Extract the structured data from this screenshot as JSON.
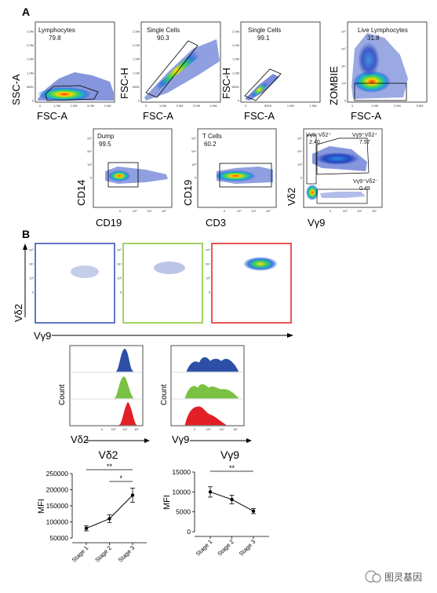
{
  "panels": {
    "a": "A",
    "b": "B"
  },
  "scatter_row1": [
    {
      "x_label": "FSC-A",
      "y_label": "SSC-A",
      "gate_label": "Lymphocytes",
      "gate_value": "79.8",
      "y_ticks": [
        "2.5M",
        "2.0M",
        "1.5M",
        "1.0M",
        "500K",
        "0"
      ],
      "x_ticks": [
        "0",
        "1.0M",
        "2.0M",
        "3.0M",
        "4.0M"
      ]
    },
    {
      "x_label": "FSC-A",
      "y_label": "FSC-H",
      "gate_label": "Single Cells",
      "gate_value": "90.3",
      "y_ticks": [
        "2.5M",
        "2.0M",
        "1.5M",
        "1.0M",
        "500K",
        "0"
      ],
      "x_ticks": [
        "0",
        "1.0M",
        "2.0M",
        "3.0M",
        "4.0M"
      ]
    },
    {
      "x_label": "FSC-A",
      "y_label": "FSC-H",
      "gate_label": "Single Cells",
      "gate_value": "99.1",
      "y_ticks": [
        "2.5M",
        "2.0M",
        "1.5M",
        "1.0M",
        "500K",
        "0"
      ],
      "x_ticks": [
        "0",
        "500K",
        "1.0M",
        "1.5M"
      ]
    },
    {
      "x_label": "FSC-A",
      "y_label": "ZOMBIE",
      "gate_label": "Live Lymphocytes",
      "gate_value": "31.8",
      "y_ticks": [
        "10⁶",
        "10⁵",
        "10⁴",
        "10³",
        "0"
      ],
      "x_ticks": [
        "0",
        "1.0M",
        "2.0M",
        "3.0M"
      ]
    }
  ],
  "scatter_row2": [
    {
      "x_label": "CD19",
      "y_label": "CD14",
      "gate_label": "Dump",
      "gate_value": "99.5",
      "y_ticks": [
        "10⁵",
        "10⁴",
        "10³",
        "0"
      ],
      "x_ticks": [
        "0",
        "10³",
        "10⁴",
        "10⁵"
      ]
    },
    {
      "x_label": "CD3",
      "y_label": "CD19",
      "gate_label": "T Cells",
      "gate_value": "60.2",
      "y_ticks": [
        "10⁵",
        "10⁴",
        "10³",
        "0"
      ],
      "x_ticks": [
        "0",
        "10³",
        "10⁴",
        "10⁵"
      ]
    },
    {
      "x_label": "Vγ9",
      "y_label": "Vδ2",
      "gates": [
        {
          "label": "Vγ9⁻Vδ2⁺",
          "value": "2.40"
        },
        {
          "label": "Vγ9⁺Vδ2⁺",
          "value": "7.57"
        },
        {
          "label": "Vγ9⁺Vδ2⁻",
          "value": "0.49"
        }
      ],
      "y_ticks": [
        "10⁵",
        "10⁴",
        "10³",
        "0"
      ],
      "x_ticks": [
        "0",
        "10³",
        "10⁴",
        "10⁵"
      ]
    }
  ],
  "b_scatter": {
    "x_label": "Vγ9",
    "y_label": "Vδ2",
    "frame_colors": [
      "#3b55b5",
      "#8cc63f",
      "#e32b2b"
    ],
    "y_ticks": [
      "10⁵",
      "10⁴",
      "10³",
      "0"
    ]
  },
  "histograms": {
    "left_x_label": "Vδ2",
    "right_x_label": "Vγ9",
    "y_label": "Count",
    "x_ticks": [
      "0",
      "10³",
      "10⁴",
      "10⁵"
    ],
    "colors": [
      "#2d4fa8",
      "#7ac143",
      "#e21f26"
    ]
  },
  "chart_data": [
    {
      "type": "line",
      "title": "Vδ2",
      "ylabel": "MFI",
      "categories": [
        "Stage 1",
        "Stage 2",
        "Stage 3"
      ],
      "values": [
        80000,
        110000,
        183000
      ],
      "errors": [
        8000,
        12000,
        22000
      ],
      "ylim": [
        50000,
        250000
      ],
      "yticks": [
        50000,
        100000,
        150000,
        200000,
        250000
      ],
      "significance": [
        {
          "from": "Stage 1",
          "to": "Stage 3",
          "label": "**"
        },
        {
          "from": "Stage 2",
          "to": "Stage 3",
          "label": "*"
        }
      ]
    },
    {
      "type": "line",
      "title": "Vγ9",
      "ylabel": "MFI",
      "categories": [
        "Stage 1",
        "Stage 2",
        "Stage 3"
      ],
      "values": [
        10000,
        8100,
        5200
      ],
      "errors": [
        1300,
        1100,
        650
      ],
      "ylim": [
        0,
        15000
      ],
      "yticks": [
        0,
        5000,
        10000,
        15000
      ],
      "significance": [
        {
          "from": "Stage 1",
          "to": "Stage 3",
          "label": "**"
        }
      ]
    }
  ],
  "watermark": {
    "text": "图灵基因"
  }
}
